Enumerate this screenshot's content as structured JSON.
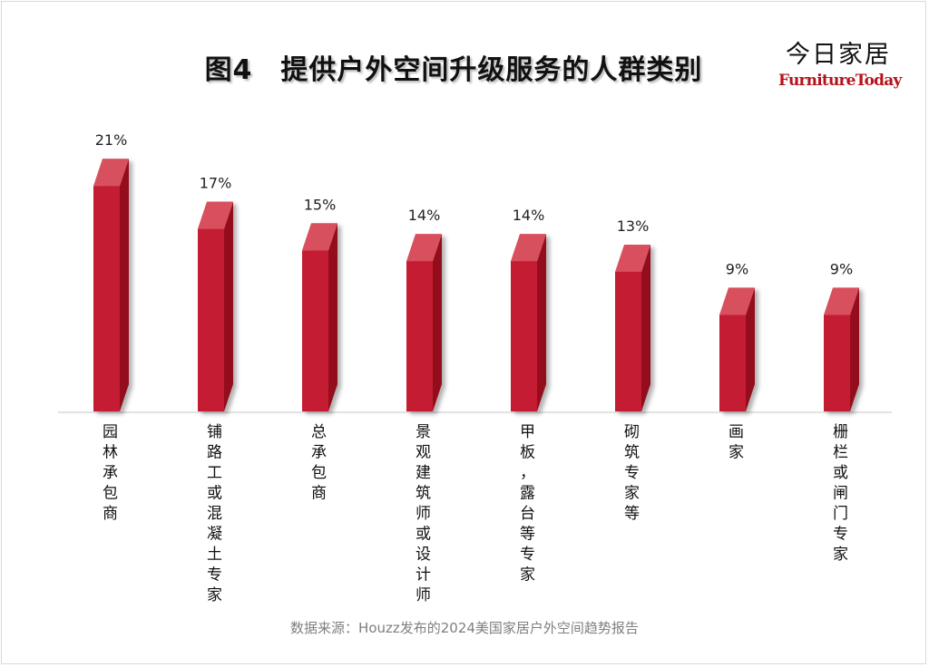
{
  "title": "图4　提供户外空间升级服务的人群类别",
  "logo": {
    "cn": "今日家居",
    "en": "FurnitureToday",
    "en_color": "#b5121b"
  },
  "source": "数据来源：Houzz发布的2024美国家居户外空间趋势报告",
  "chart_data": {
    "type": "bar",
    "title": "图4　提供户外空间升级服务的人群类别",
    "xlabel": "",
    "ylabel": "",
    "categories": [
      "园林承包商",
      "铺路工或混凝土专家",
      "总承包商",
      "景观建筑师或设计师",
      "甲板，露台等专家",
      "砌筑专家等",
      "画家",
      "栅栏或闸门专家"
    ],
    "values": [
      21,
      17,
      15,
      14,
      14,
      13,
      9,
      9
    ],
    "value_labels": [
      "21%",
      "17%",
      "15%",
      "14%",
      "14%",
      "13%",
      "9%",
      "9%"
    ],
    "unit": "%",
    "ylim": [
      0,
      21
    ],
    "grid": false,
    "legend": "none",
    "style": "3d-column",
    "colors": {
      "front": "#c41f33",
      "top": "#d8505d",
      "side": "#94101c"
    }
  }
}
